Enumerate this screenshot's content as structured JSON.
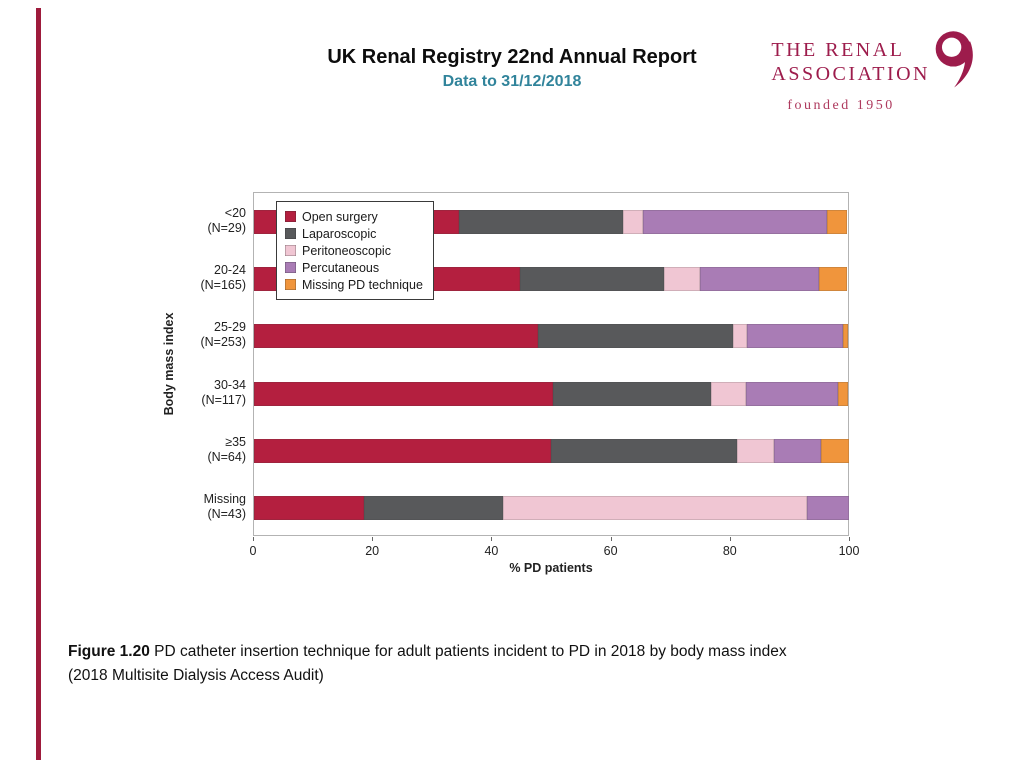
{
  "header": {
    "title": "UK Renal Registry 22nd Annual Report",
    "subtitle": "Data to 31/12/2018"
  },
  "logo": {
    "line1": "THE RENAL",
    "line2": "ASSOCIATION",
    "tagline": "founded 1950",
    "color": "#9d1c4c"
  },
  "chart_data": {
    "type": "bar",
    "orientation": "horizontal_stacked",
    "title": "",
    "xlabel": "% PD patients",
    "ylabel": "Body mass index",
    "xlim": [
      0,
      100
    ],
    "xticks": [
      0,
      20,
      40,
      60,
      80,
      100
    ],
    "grid": false,
    "legend_position": "upper-left-inside",
    "categories": [
      {
        "label": "<20",
        "n": "(N=29)"
      },
      {
        "label": "20-24",
        "n": "(N=165)"
      },
      {
        "label": "25-29",
        "n": "(N=253)"
      },
      {
        "label": "30-34",
        "n": "(N=117)"
      },
      {
        "label": "≥35",
        "n": "(N=64)"
      },
      {
        "label": "Missing",
        "n": "(N=43)"
      }
    ],
    "series": [
      {
        "name": "Open surgery",
        "color": "#b41f3f",
        "values": [
          34.5,
          44.8,
          47.8,
          50.4,
          50.0,
          18.6
        ]
      },
      {
        "name": "Laparoscopic",
        "color": "#58595b",
        "values": [
          27.6,
          24.2,
          32.8,
          26.5,
          31.3,
          23.3
        ]
      },
      {
        "name": "Peritoneoscopic",
        "color": "#f0c6d3",
        "values": [
          3.4,
          6.1,
          2.4,
          6.0,
          6.3,
          51.2
        ]
      },
      {
        "name": "Percutaneous",
        "color": "#a97cb5",
        "values": [
          31.0,
          20.0,
          16.2,
          15.4,
          7.8,
          7.0
        ]
      },
      {
        "name": "Missing PD technique",
        "color": "#f0953c",
        "values": [
          3.4,
          4.8,
          0.8,
          1.7,
          4.7,
          0
        ]
      }
    ]
  },
  "caption": {
    "figure_label": "Figure 1.20",
    "text": " PD catheter insertion technique for adult patients incident to PD in 2018 by body mass index",
    "line2": "(2018 Multisite Dialysis Access Audit)"
  }
}
